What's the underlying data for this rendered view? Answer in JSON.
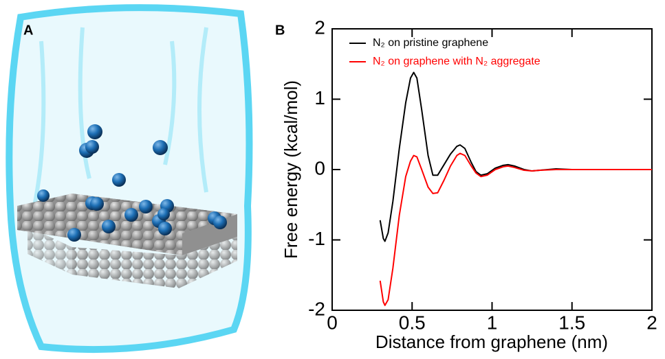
{
  "panel_a_label": "A",
  "chart_data": {
    "type": "line",
    "panel_label": "B",
    "xlabel": "Distance from graphene (nm)",
    "ylabel": "Free energy (kcal/mol)",
    "x": [
      0.3,
      0.32,
      0.33,
      0.35,
      0.38,
      0.42,
      0.46,
      0.49,
      0.51,
      0.53,
      0.56,
      0.6,
      0.63,
      0.66,
      0.7,
      0.74,
      0.78,
      0.8,
      0.83,
      0.87,
      0.9,
      0.93,
      0.97,
      1.02,
      1.07,
      1.1,
      1.14,
      1.2,
      1.25,
      1.3,
      1.4,
      1.5,
      1.6,
      1.8,
      2.0
    ],
    "series": [
      {
        "name": "N₂ on pristine graphene",
        "color": "#000000",
        "values": [
          -0.72,
          -0.98,
          -1.02,
          -0.9,
          -0.45,
          0.3,
          0.95,
          1.3,
          1.38,
          1.3,
          0.85,
          0.2,
          -0.08,
          -0.08,
          0.07,
          0.22,
          0.33,
          0.35,
          0.3,
          0.1,
          -0.03,
          -0.08,
          -0.06,
          0.02,
          0.06,
          0.07,
          0.05,
          0.0,
          -0.02,
          -0.01,
          0.01,
          0.0,
          0,
          0,
          0
        ]
      },
      {
        "name": "N₂ on graphene with N₂ aggregate",
        "color": "#ff0000",
        "values": [
          -1.58,
          -1.88,
          -1.93,
          -1.85,
          -1.4,
          -0.65,
          -0.1,
          0.12,
          0.2,
          0.18,
          0.0,
          -0.25,
          -0.34,
          -0.33,
          -0.15,
          0.05,
          0.2,
          0.23,
          0.2,
          0.05,
          -0.05,
          -0.1,
          -0.08,
          0.0,
          0.04,
          0.05,
          0.03,
          -0.01,
          -0.02,
          -0.01,
          0,
          0,
          0,
          0,
          0
        ]
      }
    ],
    "xlim": [
      0,
      2
    ],
    "xticks": [
      0,
      0.5,
      1,
      1.5,
      2
    ],
    "ylim": [
      -2,
      2
    ],
    "yticks": [
      -2,
      -1,
      0,
      1,
      2
    ]
  }
}
